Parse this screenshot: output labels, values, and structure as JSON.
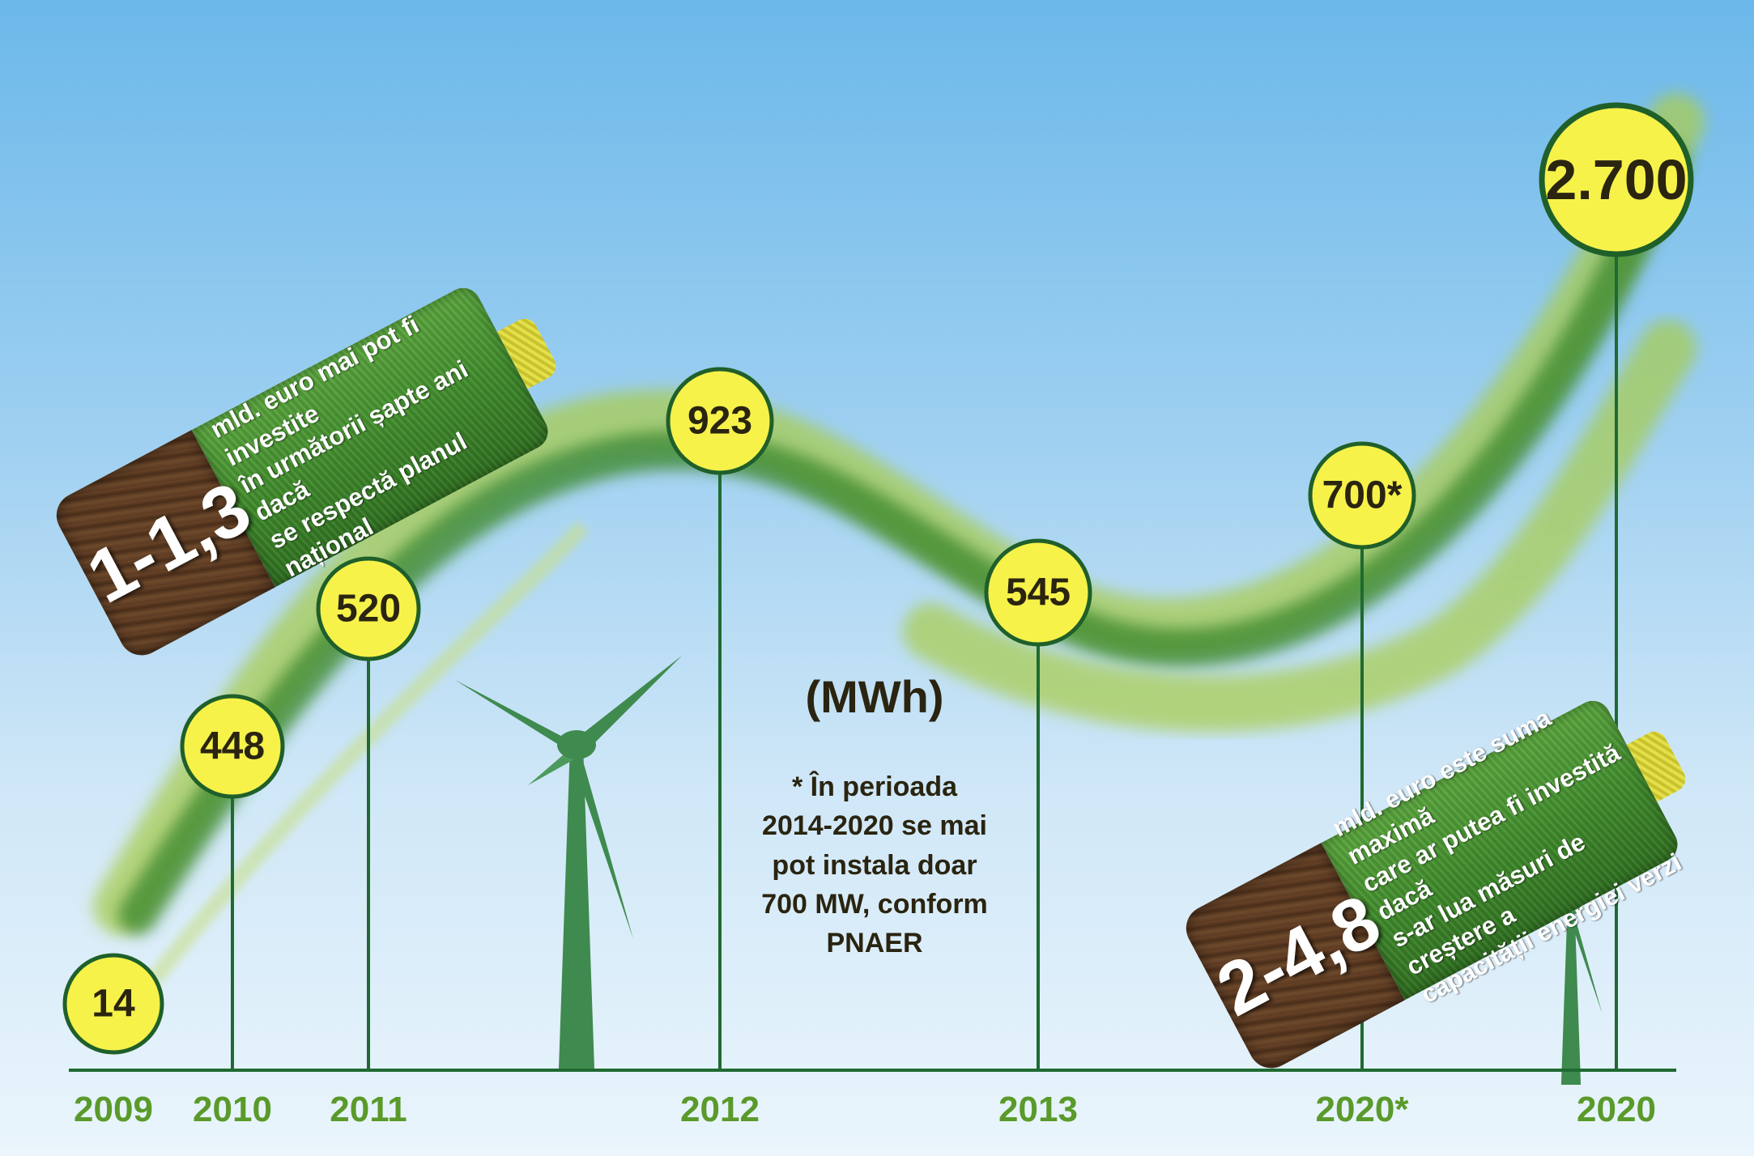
{
  "chart_data": {
    "type": "line",
    "unit_label": "(MWh)",
    "categories": [
      "2009",
      "2010",
      "2011",
      "2012",
      "2013",
      "2020*",
      "2020"
    ],
    "values": [
      14,
      448,
      520,
      923,
      545,
      700,
      2700
    ],
    "value_labels": [
      "14",
      "448",
      "520",
      "923",
      "545",
      "700*",
      "2.700"
    ],
    "footnote": "* În perioada\n2014-2020 se mai\npot instala doar\n700 MW, conform\nPNAER"
  },
  "callouts": [
    {
      "value": "1-1,3",
      "text": "mld. euro mai pot fi investite\nîn următorii șapte ani dacă\nse respectă planul național"
    },
    {
      "value": "2-4,8",
      "text": "mld. euro este suma maximă\ncare ar putea fi investită dacă\ns-ar lua măsuri de creștere a\ncapacității energiei verzi"
    }
  ],
  "colors": {
    "bubble_fill": "#f6f24a",
    "bubble_stroke": "#1f5f2a",
    "stem": "#1f6a32",
    "year": "#5a9a2a",
    "turbine": "#3f8a4e",
    "ribbon_light": "#9cc43c",
    "ribbon_dark": "#3c8a2e"
  }
}
